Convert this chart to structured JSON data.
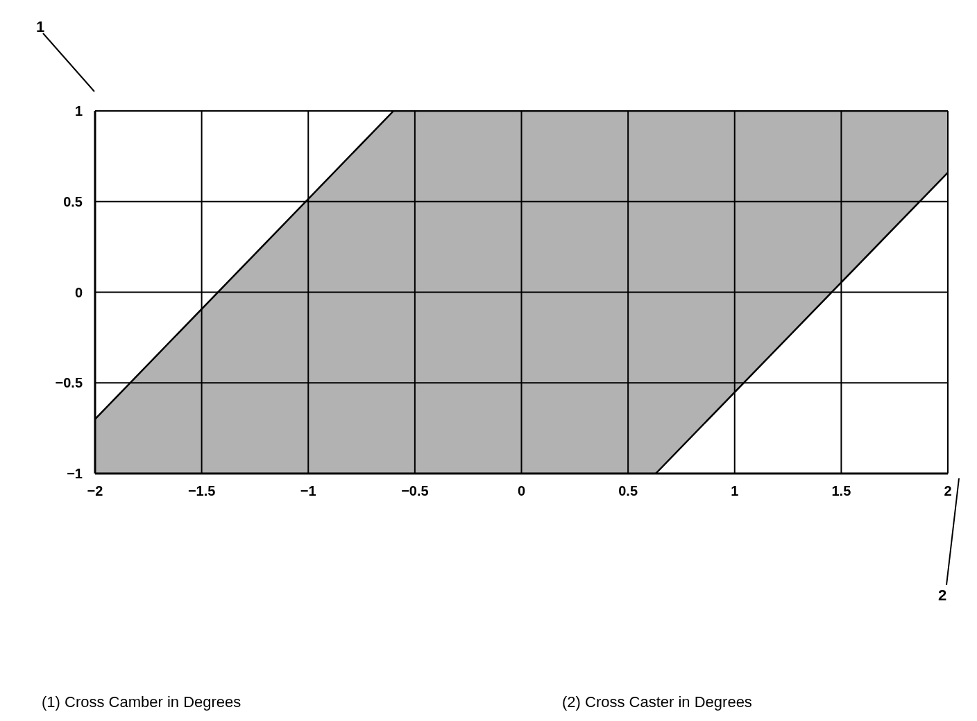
{
  "chart_data": {
    "type": "line",
    "ylabel": "1",
    "x": [
      -2,
      -0.6,
      0.63,
      2
    ],
    "series": [
      {
        "color": "#000000",
        "values": [
          -0.7,
          1,
          1,
          1
        ],
        "lower": [
          -1,
          -1,
          -1,
          0.66
        ],
        "upper": [
          -0.7,
          1,
          1,
          1
        ]
      },
      {
        "color": "#000000",
        "x": [
          0.63,
          2
        ],
        "values": [
          -1,
          0.66
        ]
      }
    ],
    "xlim": [
      -2,
      2
    ],
    "xticks": [
      {
        "value": -2,
        "label": "−2"
      },
      {
        "value": -1.5,
        "label": "−1.5"
      },
      {
        "value": -1,
        "label": "−1"
      },
      {
        "value": -0.5,
        "label": "−0.5"
      },
      0,
      0.5,
      1,
      1.5,
      2
    ],
    "ylim": [
      -1,
      1
    ],
    "yticks": [
      {
        "value": -1,
        "label": "−1"
      },
      {
        "value": -0.5,
        "label": "−0.5"
      },
      0,
      0.5,
      1
    ],
    "grid": true,
    "annotations": [
      "2",
      "(1)  Cross Camber in Degrees",
      "(2)  Cross Caster in Degrees"
    ]
  }
}
